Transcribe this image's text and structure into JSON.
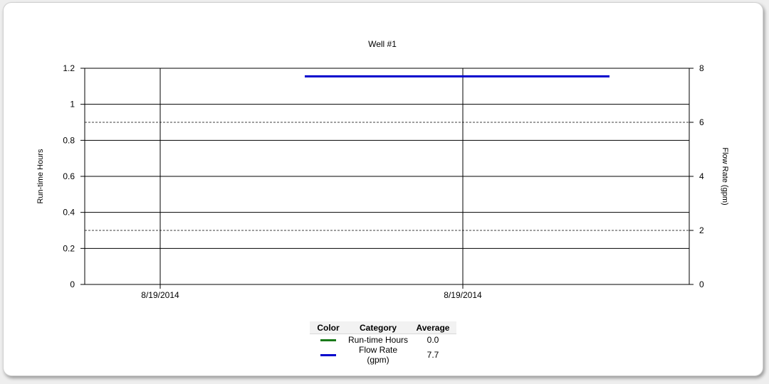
{
  "chart_data": {
    "type": "line",
    "title": "Well #1",
    "xlabel": "",
    "ylabel": "Run-time Hours",
    "y2label": "Flow Rate (gpm)",
    "x_tick_labels": [
      "8/19/2014",
      "8/19/2014"
    ],
    "ylim": [
      0,
      1.2
    ],
    "y_ticks": [
      "0",
      "0.2",
      "0.4",
      "0.6",
      "0.8",
      "1",
      "1.2"
    ],
    "y2lim": [
      0,
      8
    ],
    "y2_ticks": [
      "0",
      "2",
      "4",
      "6",
      "8"
    ],
    "series": [
      {
        "name": "Run-time Hours",
        "axis": "left",
        "color": "#1a7a1a",
        "values": []
      },
      {
        "name": "Flow Rate (gpm)",
        "axis": "right",
        "color": "#0000cc",
        "segment_value": 7.7
      }
    ],
    "legend": {
      "headers": [
        "Color",
        "Category",
        "Average"
      ],
      "rows": [
        {
          "color": "#1a7a1a",
          "category": "Run-time Hours",
          "average": "0.0"
        },
        {
          "color": "#0000cc",
          "category": "Flow Rate (gpm)",
          "average": "7.7"
        }
      ]
    }
  }
}
